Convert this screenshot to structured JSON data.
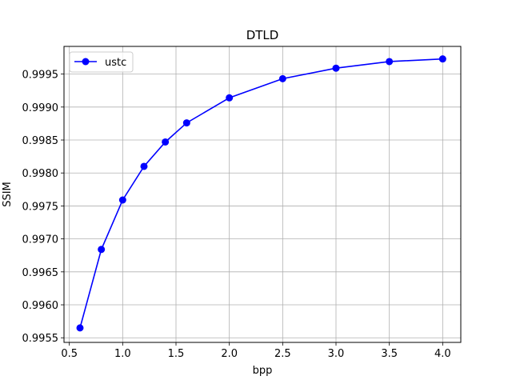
{
  "chart_data": {
    "type": "line",
    "title": "DTLD",
    "xlabel": "bpp",
    "ylabel": "SSIM",
    "xlim": [
      0.45,
      4.17
    ],
    "ylim": [
      0.99543,
      0.99992
    ],
    "x_ticks": [
      "0.5",
      "1.0",
      "1.5",
      "2.0",
      "2.5",
      "3.0",
      "3.5",
      "4.0"
    ],
    "y_ticks": [
      "0.9955",
      "0.9960",
      "0.9965",
      "0.9970",
      "0.9975",
      "0.9980",
      "0.9985",
      "0.9990",
      "0.9995"
    ],
    "grid": true,
    "legend_position": "top-left",
    "series": [
      {
        "name": "ustc",
        "color": "#0000ff",
        "marker": "circle",
        "x": [
          0.6,
          0.8,
          1.0,
          1.2,
          1.4,
          1.6,
          2.0,
          2.5,
          3.0,
          3.5,
          4.0
        ],
        "y": [
          0.99565,
          0.99684,
          0.99759,
          0.9981,
          0.99847,
          0.99876,
          0.99914,
          0.99943,
          0.99959,
          0.99969,
          0.99973
        ]
      }
    ]
  }
}
